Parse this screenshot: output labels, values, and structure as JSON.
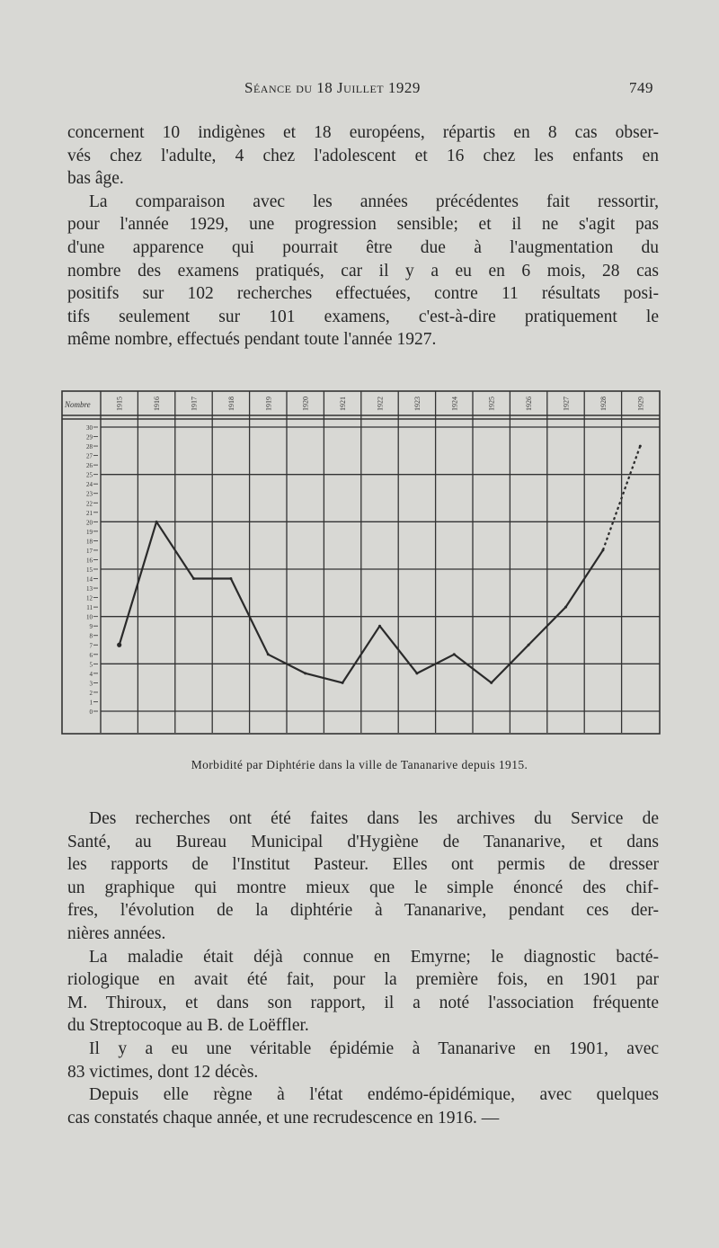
{
  "header": {
    "title": "Séance du 18 Juillet 1929",
    "page_number": "749"
  },
  "paragraphs_top": [
    {
      "lines": [
        "concernent 10 indigènes et 18 européens, répartis en 8 cas obser-",
        "vés chez l'adulte, 4 chez l'adolescent et 16 chez les enfants en",
        "bas âge."
      ]
    },
    {
      "lines": [
        "La comparaison avec les années précédentes fait ressortir,",
        "pour l'année 1929, une progression sensible; et il ne s'agit pas",
        "d'une apparence qui pourrait être due à l'augmentation du",
        "nombre des examens pratiqués, car il y a eu en 6 mois, 28 cas",
        "positifs sur 102 recherches effectuées, contre 11 résultats posi-",
        "tifs seulement sur 101 examens, c'est-à-dire pratiquement le",
        "même nombre, effectués pendant toute l'année 1927."
      ]
    }
  ],
  "chart_data": {
    "type": "line",
    "title": "Morbidité par Diphtérie dans la ville de Tananarive depuis 1915.",
    "ylabel": "Nombre",
    "categories": [
      "1915",
      "1916",
      "1917",
      "1918",
      "1919",
      "1920",
      "1921",
      "1922",
      "1923",
      "1924",
      "1925",
      "1926",
      "1927",
      "1928",
      "1929"
    ],
    "values": [
      7,
      20,
      14,
      14,
      6,
      4,
      3,
      9,
      4,
      6,
      3,
      7,
      11,
      17,
      28
    ],
    "dotted_segment": [
      "1928",
      "1929"
    ],
    "ylim": [
      0,
      30
    ],
    "yticks": [
      0,
      1,
      2,
      3,
      4,
      5,
      6,
      7,
      8,
      9,
      10,
      11,
      12,
      13,
      14,
      15,
      16,
      17,
      18,
      19,
      20,
      21,
      22,
      23,
      24,
      25,
      26,
      27,
      28,
      29,
      30
    ],
    "grid": true,
    "line_color": "#2a2a2a"
  },
  "paragraphs_bottom": [
    {
      "lines": [
        "Des recherches ont été faites dans les archives du Service de",
        "Santé, au Bureau Municipal d'Hygiène de Tananarive, et dans",
        "les rapports de l'Institut Pasteur. Elles ont permis de dresser",
        "un graphique qui montre mieux que le simple énoncé des chif-",
        "fres, l'évolution de la diphtérie à Tananarive, pendant ces der-",
        "nières années."
      ]
    },
    {
      "lines": [
        "La maladie était déjà connue en Emyrne; le diagnostic bacté-",
        "riologique en avait été fait, pour la première fois, en 1901 par",
        "M. Thiroux, et dans son rapport, il a noté l'association fréquente",
        "du Streptocoque au B. de Loëffler."
      ]
    },
    {
      "lines": [
        "Il y a eu une véritable épidémie à Tananarive en 1901, avec",
        "83 victimes, dont 12 décès."
      ]
    },
    {
      "lines": [
        "Depuis elle règne à l'état endémo-épidémique, avec quelques",
        "cas constatés chaque année, et une recrudescence en 1916. —"
      ]
    }
  ]
}
